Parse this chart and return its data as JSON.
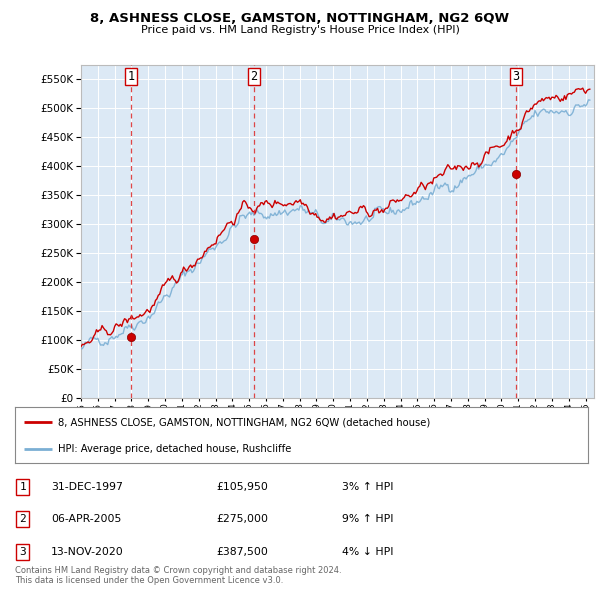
{
  "title": "8, ASHNESS CLOSE, GAMSTON, NOTTINGHAM, NG2 6QW",
  "subtitle": "Price paid vs. HM Land Registry's House Price Index (HPI)",
  "xlim_start": 1995.0,
  "xlim_end": 2025.5,
  "ylim": [
    0,
    575000
  ],
  "yticks": [
    0,
    50000,
    100000,
    150000,
    200000,
    250000,
    300000,
    350000,
    400000,
    450000,
    500000,
    550000
  ],
  "background_color": "#dce9f5",
  "grid_color": "#ffffff",
  "sales": [
    {
      "year": 1997.99,
      "price": 105950,
      "label": "1"
    },
    {
      "year": 2005.27,
      "price": 275000,
      "label": "2"
    },
    {
      "year": 2020.87,
      "price": 387500,
      "label": "3"
    }
  ],
  "sale_marker_color": "#cc0000",
  "sale_line_color": "#cc0000",
  "hpi_line_color": "#7bafd4",
  "legend_label_red": "8, ASHNESS CLOSE, GAMSTON, NOTTINGHAM, NG2 6QW (detached house)",
  "legend_label_blue": "HPI: Average price, detached house, Rushcliffe",
  "table_rows": [
    {
      "num": "1",
      "date": "31-DEC-1997",
      "price": "£105,950",
      "hpi": "3% ↑ HPI"
    },
    {
      "num": "2",
      "date": "06-APR-2005",
      "price": "£275,000",
      "hpi": "9% ↑ HPI"
    },
    {
      "num": "3",
      "date": "13-NOV-2020",
      "price": "£387,500",
      "hpi": "4% ↓ HPI"
    }
  ],
  "footer": "Contains HM Land Registry data © Crown copyright and database right 2024.\nThis data is licensed under the Open Government Licence v3.0."
}
